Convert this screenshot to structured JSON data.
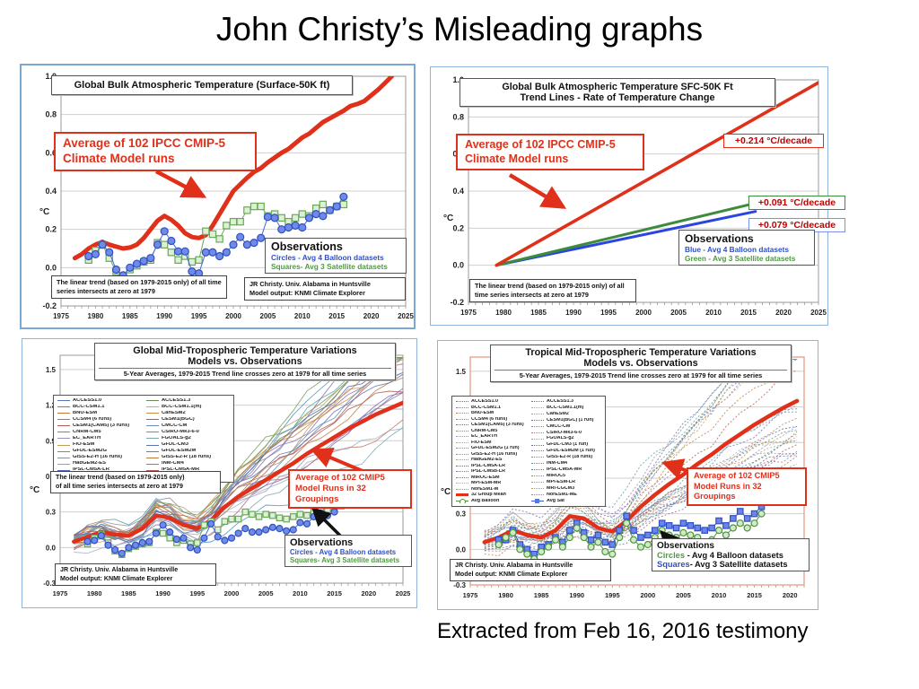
{
  "slide": {
    "title": "John Christy’s Misleading graphs",
    "caption": "Extracted from Feb 16, 2016 testimony"
  },
  "colors": {
    "model_red": "#e0301a",
    "balloon_blue": "#3050c0",
    "balloon_fill": "#6f8ae8",
    "satellite_green": "#55a040",
    "satellite_fill": "#ddefd5",
    "trend_green": "#3d8b3d",
    "trend_blue": "#2b45e0",
    "rate_text": "#c00000",
    "grid": "#cfcfcf",
    "frame": "#999999",
    "salmon_frame": "#e8a495",
    "panel_border": "#7ba7d7"
  },
  "palette": [
    "#5b76b3",
    "#8a6fb8",
    "#c07a3c",
    "#4f93b8",
    "#b35b52",
    "#6f9a55",
    "#9a90c4",
    "#c49a5e",
    "#54a0a0",
    "#8d8d9e",
    "#b5a06b",
    "#4f6ab8",
    "#a06a8d",
    "#6e8756",
    "#9fb0c8",
    "#cf8a45",
    "#7c66a8",
    "#5e8fc0",
    "#b87a66",
    "#7aa8b0"
  ],
  "chart_data": [
    {
      "id": "global-bulk-temp",
      "type": "line",
      "title": "Global Bulk Atmospheric Temperature (Surface-50K ft)",
      "ylabel": "°C",
      "xlim": [
        1975,
        2025
      ],
      "ylim": [
        -0.2,
        1.0
      ],
      "yticks": [
        1.0,
        0.8,
        0.6,
        0.4,
        0.2,
        0.0,
        -0.2
      ],
      "xticks": [
        1975,
        1980,
        1985,
        1990,
        1995,
        2000,
        2005,
        2010,
        2015,
        2020,
        2025
      ],
      "grid": "horizontal",
      "annotations": {
        "model_note": "Average of 102 IPCC CMIP-5\nClimate Model runs",
        "obs_title": "Observations",
        "obs_line1": "Circles - Avg 4 Balloon datasets",
        "obs_line2": "Squares- Avg 3 Satellite datasets",
        "trend_note": "The linear trend (based on 1979-2015 only) of all time series intersects at zero at 1979",
        "credit": "JR Christy. Univ. Alabama in Huntsville\nModel output: KNMI Climate Explorer"
      },
      "series": [
        {
          "name": "Average of 102 IPCC CMIP-5 climate model runs",
          "role": "model-mean",
          "x0": 1977,
          "step": 1,
          "values": [
            0.05,
            0.07,
            0.1,
            0.12,
            0.135,
            0.12,
            0.11,
            0.1,
            0.105,
            0.12,
            0.155,
            0.2,
            0.245,
            0.27,
            0.25,
            0.22,
            0.18,
            0.16,
            0.155,
            0.17,
            0.22,
            0.28,
            0.34,
            0.4,
            0.435,
            0.47,
            0.5,
            0.52,
            0.55,
            0.575,
            0.6,
            0.62,
            0.65,
            0.68,
            0.7,
            0.73,
            0.76,
            0.78,
            0.8,
            0.82,
            0.845,
            0.855,
            0.87,
            0.9,
            0.93,
            0.965,
            1.0
          ]
        },
        {
          "name": "Avg 4 Balloon datasets",
          "role": "balloon",
          "marker": "circle",
          "x0": 1979,
          "step": 1,
          "values": [
            0.06,
            0.07,
            0.12,
            0.08,
            -0.01,
            -0.04,
            0.0,
            0.02,
            0.035,
            0.05,
            0.12,
            0.19,
            0.14,
            0.085,
            0.085,
            -0.02,
            -0.03,
            0.08,
            0.08,
            0.06,
            0.08,
            0.12,
            0.16,
            0.12,
            0.13,
            0.155,
            0.265,
            0.26,
            0.2,
            0.21,
            0.22,
            0.21,
            0.26,
            0.28,
            0.27,
            0.3,
            0.32,
            0.37
          ]
        },
        {
          "name": "Avg 3 Satellite datasets",
          "role": "satellite",
          "marker": "square",
          "x0": 1979,
          "step": 1,
          "values": [
            0.04,
            0.09,
            0.12,
            0.05,
            -0.02,
            -0.05,
            -0.01,
            0.01,
            0.03,
            0.04,
            0.13,
            0.12,
            0.08,
            0.04,
            0.06,
            0.03,
            0.04,
            0.19,
            0.175,
            0.15,
            0.22,
            0.24,
            0.24,
            0.3,
            0.32,
            0.32,
            0.27,
            0.28,
            0.26,
            0.24,
            0.26,
            0.28,
            0.27,
            0.31,
            0.33,
            0.3,
            0.32,
            0.33
          ]
        }
      ]
    },
    {
      "id": "trend-lines",
      "type": "line",
      "title": "Global Bulk Atmospheric Temperature SFC-50K  Ft",
      "subtitle": "Trend Lines - Rate of Temperature Change",
      "ylabel": "°C",
      "xlim": [
        1975,
        2025
      ],
      "ylim": [
        -0.2,
        1.0
      ],
      "yticks": [
        1.0,
        0.8,
        0.6,
        0.4,
        0.2,
        0.0,
        -0.2
      ],
      "xticks": [
        1975,
        1980,
        1985,
        1990,
        1995,
        2000,
        2005,
        2010,
        2015,
        2020,
        2025
      ],
      "grid": "horizontal",
      "annotations": {
        "model_note": "Average of 102 IPCC CMIP-5\nClimate Model runs",
        "obs_title": "Observations",
        "obs_line1": "Blue - Avg 4 Balloon datasets",
        "obs_line2": "Green - Avg 3 Satellite datasets",
        "trend_note": "The linear trend (based on 1979-2015 only) of all time series intersects at zero at 1979"
      },
      "trends": [
        {
          "label": "+0.214 °C/decade",
          "rate_per_decade": 0.214,
          "series": "102 model average",
          "x": [
            1979,
            2025
          ],
          "y": [
            0.0,
            0.985
          ]
        },
        {
          "label": "+0.091 °C/decade",
          "rate_per_decade": 0.091,
          "series": "Avg 3 Satellite datasets",
          "x": [
            1979,
            2016
          ],
          "y": [
            0.0,
            0.335
          ]
        },
        {
          "label": "+0.079 °C/decade",
          "rate_per_decade": 0.079,
          "series": "Avg 4 Balloon datasets",
          "x": [
            1979,
            2016
          ],
          "y": [
            0.0,
            0.29
          ]
        }
      ]
    },
    {
      "id": "global-mid-trop",
      "type": "line",
      "title": "Global Mid-Tropospheric Temperature Variations",
      "title2": "Models vs. Observations",
      "subtitle": "5-Year Averages, 1979-2015 Trend line crosses zero at 1979 for all time series",
      "ylabel": "°C",
      "xlim": [
        1975,
        2025
      ],
      "ylim": [
        -0.3,
        1.5
      ],
      "yticks": [
        1.5,
        1.2,
        0.9,
        0.6,
        0.3,
        0.0,
        -0.3
      ],
      "xticks": [
        1975,
        1980,
        1985,
        1990,
        1995,
        2000,
        2005,
        2010,
        2015,
        2020,
        2025
      ],
      "grid": "horizontal",
      "legend_col1": [
        "ACCESS1.0",
        "BCC-CSM1.1",
        "BNU-ESM",
        "CCSM4 (6 runs)",
        "CESM1(CAM5) (3 runs)",
        "CNRM-CM5",
        "EC_EARTH",
        "FIO-ESM",
        "GFDL-ESM2G",
        "GISS-E2-H (16 runs)",
        "HadGEM2-ES",
        "IPSL-CM5A-LR",
        "IPSL-CM5B-LR"
      ],
      "legend_col2": [
        "ACCESS1.3",
        "BCC-CSM1.1(m)",
        "CanESM2",
        "CESM1(BGC)",
        "CMCC-CM",
        "CSIRO-Mk3-6-0",
        "FGOALS-g2",
        "GFDL-CM3",
        "GFDL-ESM2M",
        "GISS-E2-R (18 runs)",
        "INM-CM4",
        "IPSL-CM5A-MR",
        "MIROC5"
      ],
      "annotations": {
        "model_note": "Average of 102 CMIP5\nModel Runs in 32 Groupings",
        "obs_title": "Observations",
        "obs_line1": "Circles - Avg 4 Balloon datasets",
        "obs_line2": "Squares- Avg 3 Satellite datasets",
        "trend_note": "The linear trend (based on 1979-2015 only)\nof all time series intersects at zero at 1979",
        "credit": "JR Christy. Univ. Alabama in Huntsville\nModel output: KNMI Climate Explorer"
      },
      "model_lines": {
        "count": 26,
        "seed": 11,
        "factor_range": [
          0.55,
          1.55
        ],
        "style": "solid"
      },
      "series": [
        {
          "name": "Average of 102 CMIP5 model runs in 32 groupings",
          "role": "model-mean",
          "x0": 1977,
          "step": 2,
          "values": [
            0.05,
            0.09,
            0.13,
            0.11,
            0.1,
            0.16,
            0.27,
            0.25,
            0.19,
            0.16,
            0.23,
            0.34,
            0.43,
            0.5,
            0.57,
            0.64,
            0.71,
            0.79,
            0.86,
            0.93,
            1.0,
            1.06,
            1.12,
            1.17,
            1.22
          ]
        },
        {
          "name": "Avg 4 Balloon datasets",
          "role": "balloon",
          "marker": "circle",
          "x0": 1979,
          "step": 1,
          "values": [
            0.05,
            0.06,
            0.1,
            0.02,
            -0.02,
            -0.05,
            0.0,
            0.02,
            0.04,
            0.05,
            0.12,
            0.19,
            0.13,
            0.07,
            0.08,
            0.0,
            -0.02,
            0.08,
            0.2,
            0.09,
            0.06,
            0.08,
            0.12,
            0.16,
            0.13,
            0.13,
            0.15,
            0.17,
            0.16,
            0.14,
            0.15,
            0.21,
            0.2,
            0.26,
            0.29,
            0.27,
            0.3,
            0.37
          ]
        },
        {
          "name": "Avg 3 Satellite datasets",
          "role": "satellite",
          "marker": "square",
          "x0": 1979,
          "step": 1,
          "values": [
            0.03,
            0.08,
            0.11,
            0.04,
            -0.03,
            -0.06,
            -0.01,
            0.01,
            0.03,
            0.04,
            0.13,
            0.12,
            0.08,
            0.04,
            0.06,
            0.03,
            0.04,
            0.19,
            0.22,
            0.15,
            0.22,
            0.24,
            0.24,
            0.3,
            0.28,
            0.26,
            0.28,
            0.27,
            0.25,
            0.24,
            0.26,
            0.28,
            0.27,
            0.3,
            0.32,
            0.31,
            0.33,
            0.35
          ]
        }
      ]
    },
    {
      "id": "tropical-mid-trop",
      "type": "line",
      "title": "Tropical Mid-Tropospheric Temperature Variations",
      "title2": "Models vs. Observations",
      "subtitle": "5-Year Averages, 1979-2015 Trend line crosses zero at 1979 for all time series",
      "ylabel": "°C",
      "xlim": [
        1975,
        2022
      ],
      "ylim": [
        -0.3,
        1.5
      ],
      "yticks": [
        1.5,
        1.2,
        0.9,
        0.6,
        0.3,
        0.0,
        -0.3
      ],
      "xticks": [
        1975,
        1980,
        1985,
        1990,
        1995,
        2000,
        2005,
        2010,
        2015,
        2020
      ],
      "grid": "horizontal",
      "legend_col1": [
        "ACCESS1.0",
        "BCC-CSM1.1",
        "BNU-ESM",
        "CCSM4 (6 runs)",
        "CESM1(CAM5) (3 runs)",
        "CNRM-CM5",
        "EC_EARTH",
        "FIO-ESM",
        "GFDL-ESM2G (1 run)",
        "GISS-E2-H (16 runs)",
        "HadGEM2-ES",
        "IPSL-CM5A-LR",
        "IPSL-CM5B-LR",
        "MIROC-ESM",
        "MPI-ESM-MR",
        "NorESM1-M",
        "32 Group Mean",
        "Avg Balloon"
      ],
      "legend_col2": [
        "ACCESS1.3",
        "BCC-CSM1.1(m)",
        "CanESM2",
        "CESM1(BGC) (1 run)",
        "CMCC-CM",
        "CSIRO-Mk3-6-0",
        "FGOALS-g2",
        "GFDL-CM3 (1 run)",
        "GFDL-ESM2M (1 run)",
        "GISS-E2-R (18 runs)",
        "INM-CM4",
        "IPSL-CM5A-MR",
        "MIROC5",
        "MPI-ESM-LR",
        "MRI-CGCM3",
        "NorESM1-ME",
        "Avg Sat"
      ],
      "annotations": {
        "model_note": "Average of 102 CMIP5\nModel Runs in 32 Groupings",
        "obs_title": "Observations",
        "obs_line1_lead": "Circles",
        "obs_line1_rest": " - Avg 4 Balloon datasets",
        "obs_line2_lead": "Squares",
        "obs_line2_rest": "- Avg 3 Satellite datasets",
        "credit": "JR Christy. Univ. Alabama in Huntsville\nModel output: KNMI Climate Explorer"
      },
      "model_lines": {
        "count": 30,
        "seed": 23,
        "factor_range": [
          0.6,
          1.6
        ],
        "style": "dotted"
      },
      "series": [
        {
          "name": "32 Group Mean",
          "role": "model-mean",
          "x0": 1977,
          "step": 2,
          "values": [
            0.06,
            0.1,
            0.16,
            0.12,
            0.1,
            0.16,
            0.28,
            0.26,
            0.18,
            0.15,
            0.24,
            0.36,
            0.46,
            0.55,
            0.63,
            0.72,
            0.8,
            0.89,
            0.97,
            1.05,
            1.12,
            1.19,
            1.25
          ]
        },
        {
          "name": "Avg Balloon",
          "role": "balloon-green",
          "marker": "circle",
          "x0": 1979,
          "step": 1,
          "values": [
            0.04,
            0.1,
            0.14,
            0.0,
            -0.04,
            -0.08,
            -0.02,
            0.02,
            0.08,
            0.02,
            0.1,
            0.18,
            0.1,
            0.02,
            0.06,
            -0.02,
            -0.04,
            0.1,
            0.22,
            0.08,
            0.02,
            0.04,
            0.1,
            0.16,
            0.12,
            0.1,
            0.14,
            0.12,
            0.1,
            0.06,
            0.08,
            0.16,
            0.12,
            0.18,
            0.22,
            0.18,
            0.22,
            0.3
          ]
        },
        {
          "name": "Avg Sat",
          "role": "satellite-blue",
          "marker": "square",
          "x0": 1979,
          "step": 1,
          "values": [
            0.08,
            0.08,
            0.16,
            0.04,
            0.0,
            -0.04,
            0.02,
            0.04,
            0.1,
            0.06,
            0.16,
            0.22,
            0.14,
            0.08,
            0.12,
            0.06,
            0.04,
            0.16,
            0.28,
            0.16,
            0.1,
            0.12,
            0.16,
            0.22,
            0.2,
            0.18,
            0.22,
            0.2,
            0.18,
            0.16,
            0.18,
            0.24,
            0.2,
            0.26,
            0.32,
            0.26,
            0.3,
            0.36
          ]
        }
      ]
    }
  ]
}
